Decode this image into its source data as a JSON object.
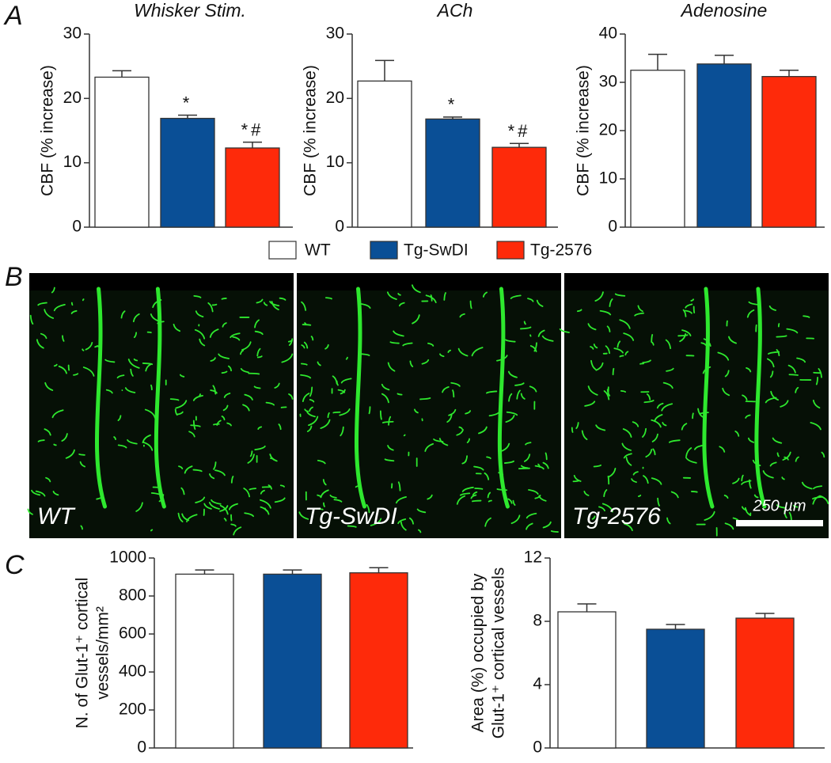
{
  "panel_labels": [
    "A",
    "B",
    "C"
  ],
  "legend": [
    {
      "name": "WT",
      "color": "#ffffff"
    },
    {
      "name": "Tg-SwDI",
      "color": "#0a4f96"
    },
    {
      "name": "Tg-2576",
      "color": "#fe2a0a"
    }
  ],
  "images": [
    {
      "label": "WT"
    },
    {
      "label": "Tg-SwDI"
    },
    {
      "label": "Tg-2576"
    }
  ],
  "scale_bar": "250 µm",
  "chart_data": [
    {
      "type": "bar",
      "title": "Whisker Stim.",
      "ylabel": [
        "CBF (% increase)"
      ],
      "values": [
        23.3,
        16.9,
        12.3
      ],
      "errors": [
        1.0,
        0.5,
        0.9
      ],
      "colors": [
        "#ffffff",
        "#0a4f96",
        "#fe2a0a"
      ],
      "annotations": [
        null,
        "*",
        "*#"
      ],
      "ylim": [
        0,
        30
      ],
      "yticks": [
        0,
        10,
        20,
        30
      ]
    },
    {
      "type": "bar",
      "title": "ACh",
      "ylabel": [
        "CBF (% increase)"
      ],
      "values": [
        22.7,
        16.8,
        12.4
      ],
      "errors": [
        3.2,
        0.3,
        0.6
      ],
      "colors": [
        "#ffffff",
        "#0a4f96",
        "#fe2a0a"
      ],
      "annotations": [
        null,
        "*",
        "*#"
      ],
      "ylim": [
        0,
        30
      ],
      "yticks": [
        0,
        10,
        20,
        30
      ]
    },
    {
      "type": "bar",
      "title": "Adenosine",
      "ylabel": [
        "CBF (% increase)"
      ],
      "values": [
        32.5,
        33.8,
        31.2
      ],
      "errors": [
        3.3,
        1.8,
        1.3
      ],
      "colors": [
        "#ffffff",
        "#0a4f96",
        "#fe2a0a"
      ],
      "ylim": [
        0,
        40
      ],
      "yticks": [
        0,
        10,
        20,
        30,
        40
      ]
    },
    {
      "type": "bar",
      "ylabel": [
        "N. of Glut-1⁺ cortical",
        "vessels/mm²"
      ],
      "values": [
        915,
        915,
        922
      ],
      "errors": [
        22,
        22,
        27
      ],
      "colors": [
        "#ffffff",
        "#0a4f96",
        "#fe2a0a"
      ],
      "ylim": [
        0,
        1000
      ],
      "yticks": [
        0,
        200,
        400,
        600,
        800,
        1000
      ]
    },
    {
      "type": "bar",
      "ylabel": [
        "Area (%) occupied by",
        "Glut-1⁺ cortical vessels"
      ],
      "values": [
        8.6,
        7.5,
        8.2
      ],
      "errors": [
        0.5,
        0.3,
        0.3
      ],
      "colors": [
        "#ffffff",
        "#0a4f96",
        "#fe2a0a"
      ],
      "ylim": [
        0,
        12
      ],
      "yticks": [
        0,
        4,
        8,
        12
      ]
    }
  ]
}
